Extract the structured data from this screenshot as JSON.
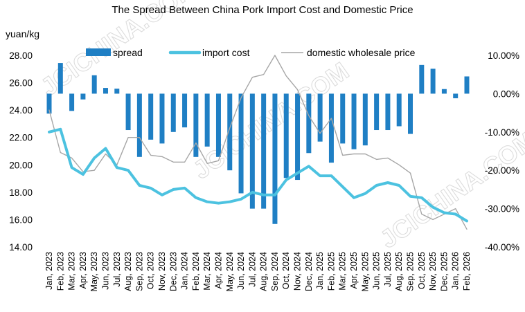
{
  "chart_data": {
    "type": "bar+line",
    "title": "The Spread Between China Pork Import Cost and Domestic Price",
    "y_left_unit": "yuan/kg",
    "y_left_range": [
      14,
      28
    ],
    "y_left_ticks": [
      "14.00",
      "16.00",
      "18.00",
      "20.00",
      "22.00",
      "24.00",
      "26.00",
      "28.00"
    ],
    "y_right_range": [
      -40,
      10
    ],
    "y_right_ticks": [
      "-40.00%",
      "-30.00%",
      "-20.00%",
      "-10.00%",
      "0.00%",
      "10.00%"
    ],
    "grid": false,
    "legend_placement": "top",
    "categories": [
      "Jan, 2023",
      "Feb, 2023",
      "Mar, 2023",
      "Apr, 2023",
      "May, 2023",
      "Jun, 2023",
      "Jul, 2023",
      "Aug, 2023",
      "Sep, 2023",
      "Oct, 2023",
      "Nov, 2023",
      "Dec, 2023",
      "Jan, 2024",
      "Feb, 2024",
      "Mar, 2024",
      "Apr, 2024",
      "May, 2024",
      "Jun, 2024",
      "Jul, 2024",
      "Aug, 2024",
      "Sep, 2024",
      "Oct, 2024",
      "Nov, 2024",
      "Dec, 2024",
      "Jan, 2025",
      "Feb, 2025",
      "Mar, 2025",
      "Apr, 2025",
      "May, 2025",
      "Jun, 2025",
      "Jul, 2025",
      "Aug, 2025",
      "Sep, 2025",
      "Oct, 2025",
      "Nov, 2025",
      "Dec, 2025",
      "Jan, 2026",
      "Feb, 2026"
    ],
    "series": [
      {
        "name": "spread",
        "type": "bar",
        "axis": "right",
        "color": "#1F7FC4",
        "values": [
          -5.2,
          8.0,
          -4.5,
          -1.5,
          4.8,
          1.5,
          1.3,
          -9.5,
          -16.5,
          -12.0,
          -13.0,
          -10.0,
          -8.8,
          -16.5,
          -13.8,
          -16.5,
          -20.0,
          -26.0,
          -30.0,
          -30.0,
          -34.0,
          -22.0,
          -22.5,
          -15.5,
          -12.5,
          -18.0,
          -13.0,
          -14.5,
          -13.5,
          -9.5,
          -9.5,
          -8.5,
          -10.5,
          7.5,
          6.5,
          1.2,
          -1.2,
          4.5
        ]
      },
      {
        "name": "import cost",
        "type": "line",
        "axis": "left",
        "color": "#4CC2E0",
        "values": [
          22.4,
          22.6,
          19.8,
          19.3,
          20.5,
          21.2,
          19.8,
          19.6,
          18.5,
          18.3,
          17.8,
          18.2,
          18.3,
          17.6,
          17.3,
          17.2,
          17.3,
          17.5,
          18.0,
          17.8,
          17.8,
          18.9,
          19.4,
          19.9,
          19.2,
          19.2,
          18.4,
          17.6,
          17.9,
          18.5,
          18.7,
          18.5,
          17.7,
          17.6,
          16.9,
          16.5,
          16.4,
          15.9
        ]
      },
      {
        "name": "domestic wholesale price",
        "type": "line",
        "axis": "left",
        "color": "#A6A6A6",
        "values": [
          24.0,
          20.9,
          20.5,
          19.5,
          19.6,
          20.8,
          20.0,
          22.0,
          22.0,
          20.7,
          20.6,
          20.2,
          20.2,
          21.6,
          20.1,
          20.3,
          22.7,
          24.9,
          26.4,
          26.6,
          28.0,
          26.5,
          25.5,
          23.6,
          22.3,
          23.4,
          20.7,
          20.8,
          20.8,
          20.4,
          20.5,
          20.0,
          19.4,
          16.4,
          16.0,
          16.4,
          16.8,
          15.3
        ]
      }
    ]
  },
  "watermark": "JCICHINA.COM"
}
